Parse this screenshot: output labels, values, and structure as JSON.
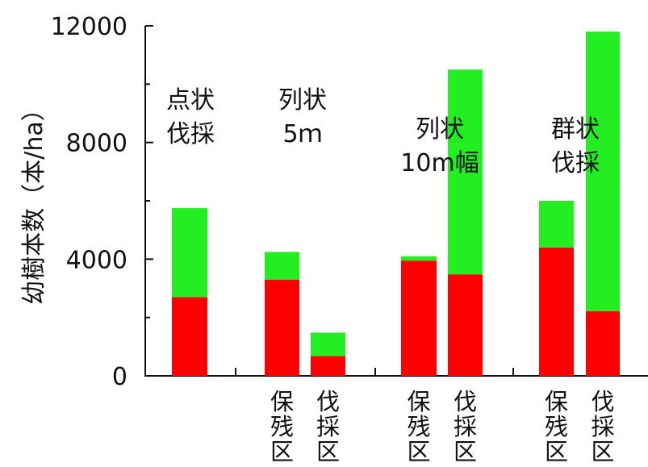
{
  "chart_data": {
    "type": "bar",
    "stacked": true,
    "ylabel": "幼樹本数（本/ha）",
    "ylim": [
      0,
      12000
    ],
    "yticks": [
      "0",
      "4000",
      "8000",
      "12000"
    ],
    "groups": [
      {
        "label_lines": [
          "点状",
          "伐採"
        ],
        "bars": [
          {
            "sublabel": "",
            "red": 2700,
            "green": 3050
          }
        ]
      },
      {
        "label_lines": [
          "列状",
          "5ｍ"
        ],
        "bars": [
          {
            "sublabel": "保残区",
            "red": 3300,
            "green": 950
          },
          {
            "sublabel": "伐採区",
            "red": 680,
            "green": 800
          }
        ]
      },
      {
        "label_lines": [
          "列状",
          "10m幅"
        ],
        "bars": [
          {
            "sublabel": "保残区",
            "red": 3950,
            "green": 150
          },
          {
            "sublabel": "伐採区",
            "red": 3480,
            "green": 7020
          }
        ]
      },
      {
        "label_lines": [
          "群状",
          "伐採"
        ],
        "bars": [
          {
            "sublabel": "保残区",
            "red": 4400,
            "green": 1600
          },
          {
            "sublabel": "伐採区",
            "red": 2220,
            "green": 9580
          }
        ]
      }
    ],
    "colors": {
      "red": "#ff0000",
      "green": "#22ee22",
      "axis": "#111111"
    },
    "grid": false
  }
}
